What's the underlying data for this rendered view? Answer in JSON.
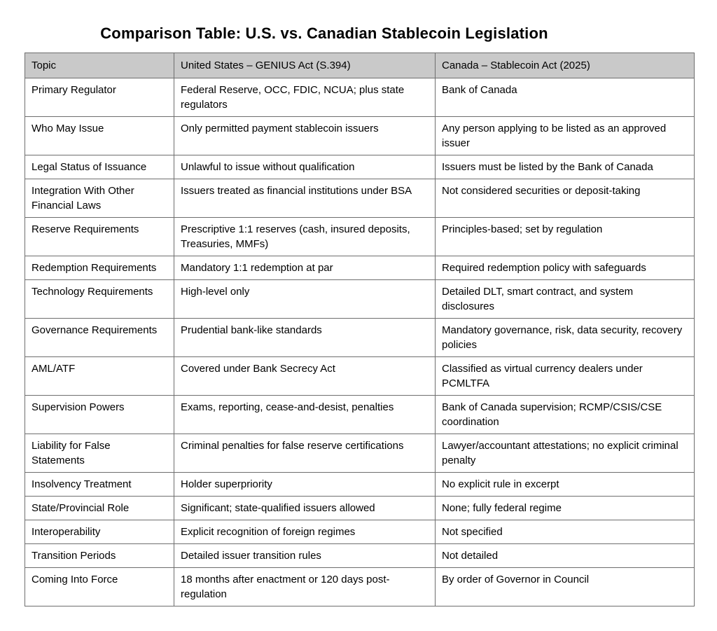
{
  "page": {
    "title": "Comparison Table: U.S. vs. Canadian Stablecoin Legislation"
  },
  "table": {
    "header_bg": "#c9c9c9",
    "border_color": "#6e6e6e",
    "columns": [
      "Topic",
      "United States – GENIUS Act (S.394)",
      "Canada – Stablecoin Act (2025)"
    ],
    "rows": [
      {
        "topic": "Primary Regulator",
        "us": "Federal Reserve, OCC, FDIC, NCUA; plus state regulators",
        "canada": "Bank of Canada"
      },
      {
        "topic": "Who May Issue",
        "us": "Only permitted payment stablecoin issuers",
        "canada": "Any person applying to be listed as an approved issuer"
      },
      {
        "topic": "Legal Status of Issuance",
        "us": "Unlawful to issue without qualification",
        "canada": "Issuers must be listed by the Bank of Canada"
      },
      {
        "topic": "Integration With Other Financial Laws",
        "us": "Issuers treated as financial institutions under BSA",
        "canada": "Not considered securities or deposit-taking"
      },
      {
        "topic": "Reserve Requirements",
        "us": "Prescriptive 1:1 reserves (cash, insured deposits, Treasuries, MMFs)",
        "canada": "Principles-based; set by regulation"
      },
      {
        "topic": "Redemption Requirements",
        "us": "Mandatory 1:1 redemption at par",
        "canada": "Required redemption policy with safeguards"
      },
      {
        "topic": "Technology Requirements",
        "us": "High-level only",
        "canada": "Detailed DLT, smart contract, and system disclosures"
      },
      {
        "topic": "Governance Requirements",
        "us": "Prudential bank-like standards",
        "canada": "Mandatory governance, risk, data security, recovery policies"
      },
      {
        "topic": "AML/ATF",
        "us": "Covered under Bank Secrecy Act",
        "canada": "Classified as virtual currency dealers under PCMLTFA"
      },
      {
        "topic": "Supervision Powers",
        "us": "Exams, reporting, cease-and-desist, penalties",
        "canada": "Bank of Canada supervision; RCMP/CSIS/CSE coordination"
      },
      {
        "topic": "Liability for False Statements",
        "us": "Criminal penalties for false reserve certifications",
        "canada": "Lawyer/accountant attestations; no explicit criminal penalty"
      },
      {
        "topic": "Insolvency Treatment",
        "us": "Holder superpriority",
        "canada": "No explicit rule in excerpt"
      },
      {
        "topic": "State/Provincial Role",
        "us": "Significant; state-qualified issuers allowed",
        "canada": "None; fully federal regime"
      },
      {
        "topic": "Interoperability",
        "us": "Explicit recognition of foreign regimes",
        "canada": "Not specified"
      },
      {
        "topic": "Transition Periods",
        "us": "Detailed issuer transition rules",
        "canada": "Not detailed"
      },
      {
        "topic": "Coming Into Force",
        "us": "18 months after enactment or 120 days post-regulation",
        "canada": "By order of Governor in Council"
      }
    ]
  }
}
